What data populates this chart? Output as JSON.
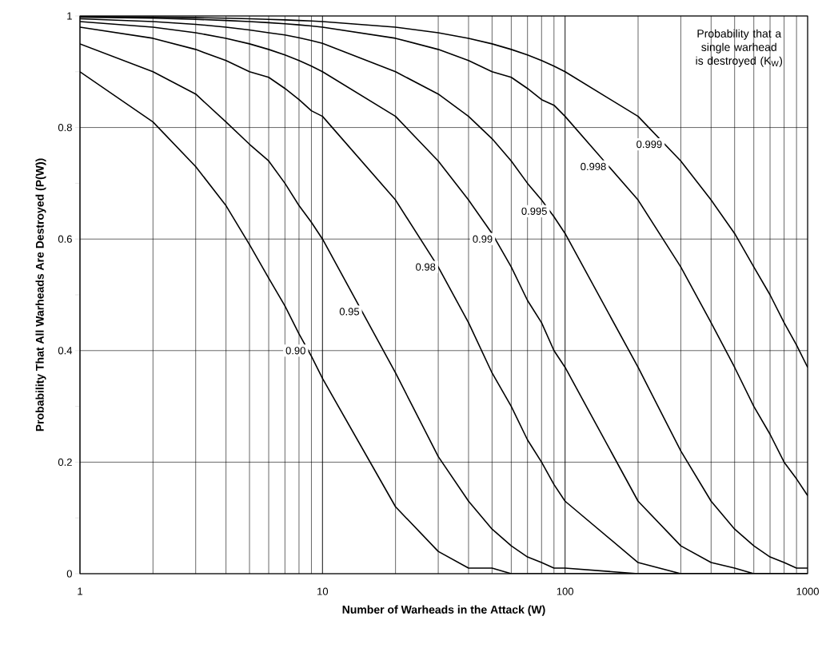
{
  "chart_data": {
    "type": "line",
    "xlabel": "Number of Warheads in the Attack (W)",
    "ylabel": "Probability That All Warheads Are Destroyed (P(W))",
    "legend_title": "Probability that a single warhead is destroyed (K$_{W}$)",
    "log": "x",
    "grid": true,
    "xlim": [
      1,
      1000
    ],
    "xticks": [
      1,
      10,
      100,
      1000
    ],
    "ylim": [
      0,
      1
    ],
    "yticks": [
      0,
      0.2,
      0.4,
      0.6,
      0.8,
      1
    ],
    "x": [
      1,
      2,
      3,
      4,
      5,
      6,
      7,
      8,
      9,
      10,
      20,
      30,
      40,
      50,
      60,
      70,
      80,
      90,
      100,
      200,
      300,
      400,
      500,
      600,
      700,
      800,
      900,
      1000
    ],
    "series": [
      {
        "name": "0.90",
        "color": "#000000",
        "values": [
          0.9,
          0.81,
          0.73,
          0.66,
          0.59,
          0.53,
          0.48,
          0.43,
          0.39,
          0.35,
          0.12,
          0.04,
          0.01,
          0.01,
          0,
          0,
          0,
          0,
          0,
          0,
          0,
          0,
          0,
          0,
          0,
          0,
          0,
          0
        ]
      },
      {
        "name": "0.95",
        "color": "#000000",
        "values": [
          0.95,
          0.9,
          0.86,
          0.81,
          0.77,
          0.74,
          0.7,
          0.66,
          0.63,
          0.6,
          0.36,
          0.21,
          0.13,
          0.08,
          0.05,
          0.03,
          0.02,
          0.01,
          0.01,
          0,
          0,
          0,
          0,
          0,
          0,
          0,
          0,
          0
        ]
      },
      {
        "name": "0.98",
        "color": "#000000",
        "values": [
          0.98,
          0.96,
          0.94,
          0.92,
          0.9,
          0.89,
          0.87,
          0.85,
          0.83,
          0.82,
          0.67,
          0.55,
          0.45,
          0.36,
          0.3,
          0.24,
          0.2,
          0.16,
          0.13,
          0.02,
          0,
          0,
          0,
          0,
          0,
          0,
          0,
          0
        ]
      },
      {
        "name": "0.99",
        "color": "#000000",
        "values": [
          0.99,
          0.98,
          0.97,
          0.96,
          0.95,
          0.94,
          0.93,
          0.92,
          0.91,
          0.9,
          0.82,
          0.74,
          0.67,
          0.61,
          0.55,
          0.49,
          0.45,
          0.4,
          0.37,
          0.13,
          0.05,
          0.02,
          0.01,
          0,
          0,
          0,
          0,
          0
        ]
      },
      {
        "name": "0.995",
        "color": "#000000",
        "values": [
          0.995,
          0.99,
          0.985,
          0.98,
          0.975,
          0.97,
          0.966,
          0.961,
          0.956,
          0.951,
          0.9,
          0.86,
          0.82,
          0.78,
          0.74,
          0.7,
          0.67,
          0.64,
          0.61,
          0.37,
          0.22,
          0.13,
          0.08,
          0.05,
          0.03,
          0.02,
          0.01,
          0.01
        ]
      },
      {
        "name": "0.998",
        "color": "#000000",
        "values": [
          0.998,
          0.996,
          0.994,
          0.992,
          0.99,
          0.988,
          0.986,
          0.984,
          0.982,
          0.98,
          0.96,
          0.94,
          0.92,
          0.9,
          0.89,
          0.87,
          0.85,
          0.84,
          0.82,
          0.67,
          0.55,
          0.45,
          0.37,
          0.3,
          0.25,
          0.2,
          0.17,
          0.14
        ]
      },
      {
        "name": "0.999",
        "color": "#000000",
        "values": [
          0.999,
          0.998,
          0.997,
          0.996,
          0.995,
          0.994,
          0.993,
          0.992,
          0.991,
          0.99,
          0.98,
          0.97,
          0.96,
          0.95,
          0.94,
          0.93,
          0.92,
          0.91,
          0.9,
          0.82,
          0.74,
          0.67,
          0.61,
          0.55,
          0.5,
          0.45,
          0.41,
          0.37
        ]
      }
    ]
  }
}
